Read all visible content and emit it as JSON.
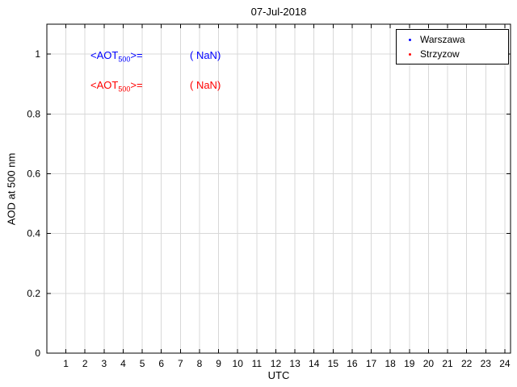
{
  "chart_data": {
    "type": "scatter",
    "title": "07-Jul-2018",
    "xlabel": "UTC",
    "ylabel": "AOD at 500 nm",
    "xlim": [
      0,
      24.3
    ],
    "ylim": [
      0,
      1.1
    ],
    "xticks": [
      1,
      2,
      3,
      4,
      5,
      6,
      7,
      8,
      9,
      10,
      11,
      12,
      13,
      14,
      15,
      16,
      17,
      18,
      19,
      20,
      21,
      22,
      23,
      24
    ],
    "yticks": [
      0,
      0.2,
      0.4,
      0.6,
      0.8,
      1
    ],
    "grid": true,
    "background": "#ffffff",
    "grid_color": "#d8d8d8",
    "axis_color": "#000000",
    "legend_position": "top-right",
    "series": [
      {
        "name": "Warszawa",
        "color": "#0000ff",
        "marker": "dot",
        "x": [],
        "y": []
      },
      {
        "name": "Strzyzow",
        "color": "#ff0000",
        "marker": "dot",
        "x": [],
        "y": []
      }
    ],
    "annotations": [
      {
        "prefix": "<AOT",
        "sub": "500",
        "suffix": ">=",
        "value": "( NaN)",
        "color": "#0000ff"
      },
      {
        "prefix": "<AOT",
        "sub": "500",
        "suffix": ">=",
        "value": "( NaN)",
        "color": "#ff0000"
      }
    ]
  }
}
